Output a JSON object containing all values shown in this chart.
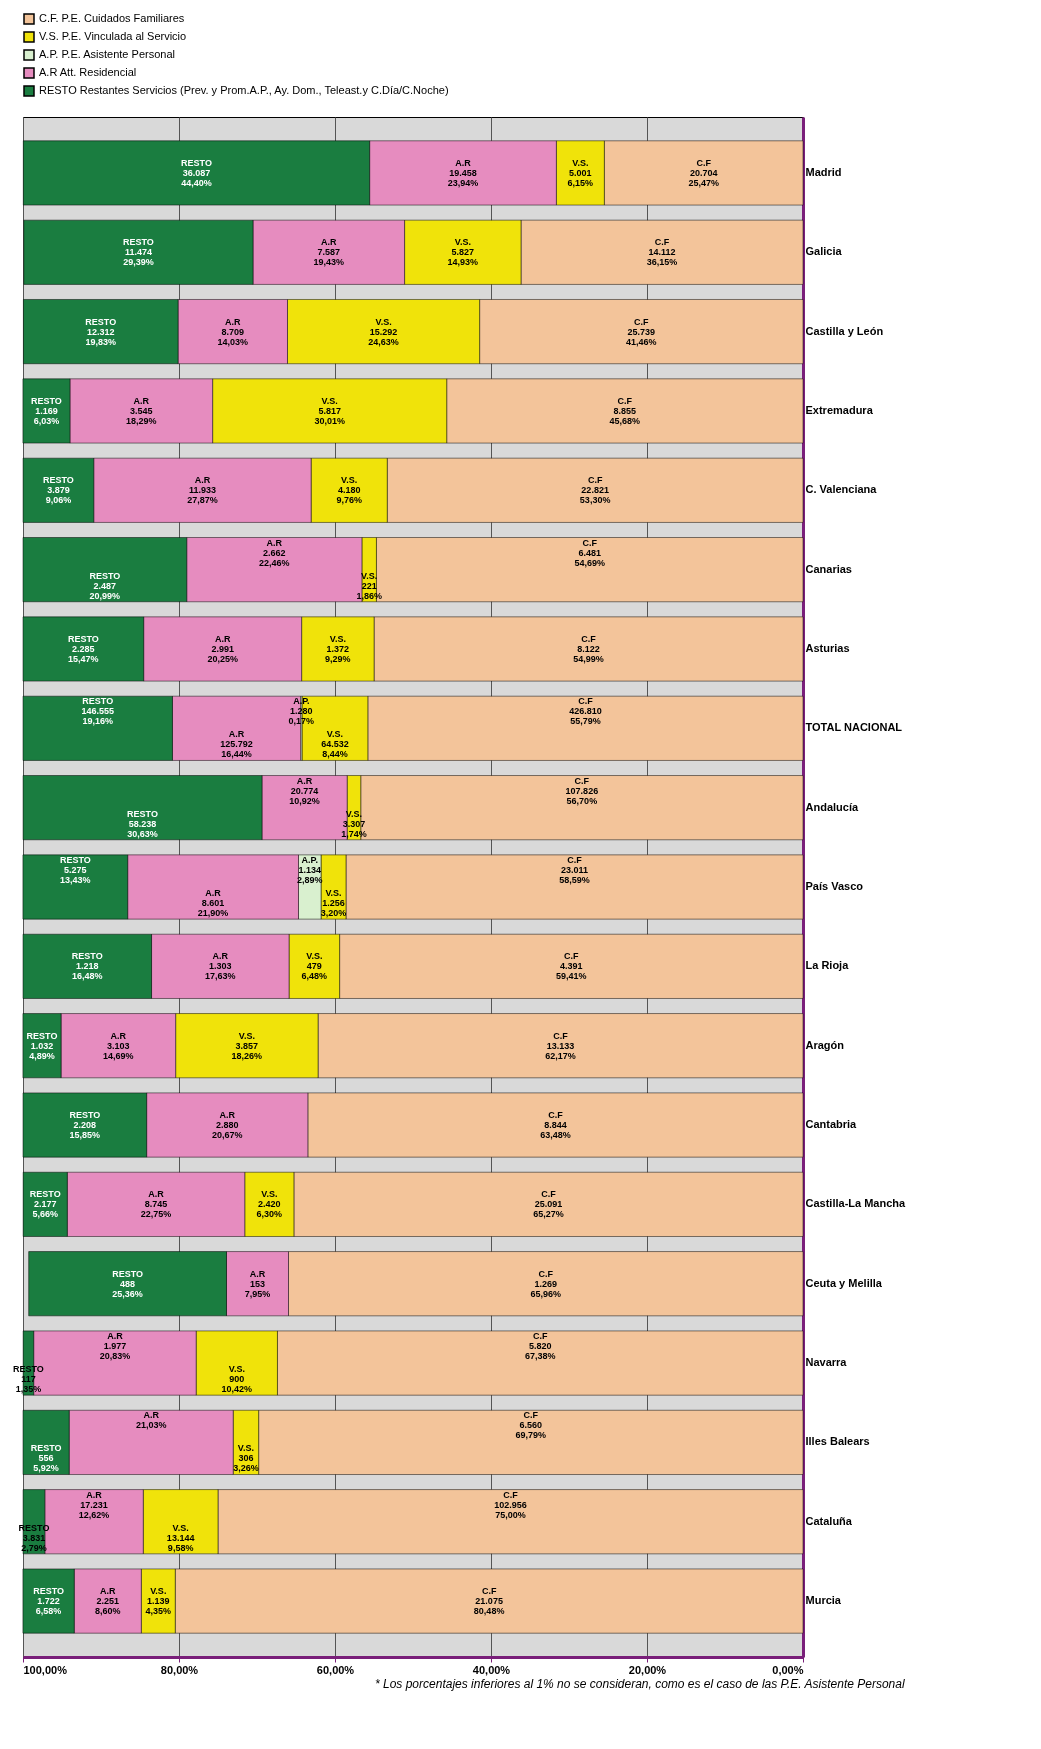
{
  "chart_data": {
    "type": "bar",
    "stacked": true,
    "orientation": "horizontal",
    "categories": [
      "Madrid",
      "Galicia",
      "Castilla y León",
      "Extremadura",
      "C. Valenciana",
      "Canarias",
      "Asturias",
      "TOTAL NACIONAL",
      "Andalucía",
      "País Vasco",
      "La Rioja",
      "Aragón",
      "Cantabria",
      "Castilla-La Mancha",
      "Ceuta y Melilla",
      "Navarra",
      "Illes Balears",
      "Cataluña",
      "Murcia"
    ],
    "series": [
      {
        "name": "C.F. P.E. Cuidados Familiares",
        "color": "#f3c49a",
        "values": [
          25.47,
          36.15,
          41.46,
          45.68,
          53.3,
          54.69,
          54.99,
          55.79,
          56.7,
          58.59,
          59.41,
          62.17,
          63.48,
          65.27,
          65.96,
          67.38,
          69.79,
          75.0,
          80.48
        ],
        "value_labels": [
          "C.F\n20.704\n25,47%",
          "C.F\n14.112\n36,15%",
          "C.F\n25.739\n41,46%",
          "C.F\n8.855\n45,68%",
          "C.F\n22.821\n53,30%",
          "C.F\n6.481\n54,69%",
          "C.F\n8.122\n54,99%",
          "C.F\n426.810\n55,79%",
          "C.F\n107.826\n56,70%",
          "C.F\n23.011\n58,59%",
          "C.F\n4.391\n59,41%",
          "C.F\n13.133\n62,17%",
          "C.F\n8.844\n63,48%",
          "C.F\n25.091\n65,27%",
          "C.F\n1.269\n65,96%",
          "C.F\n5.820\n67,38%",
          "C.F\n6.560\n69,79%",
          "C.F\n102.956\n75,00%",
          "C.F\n21.075\n80,48%"
        ]
      },
      {
        "name": "V.S. P.E. Vinculada al Servicio",
        "color": "#f0e30a",
        "values": [
          6.15,
          14.93,
          24.63,
          30.01,
          9.76,
          1.86,
          9.29,
          8.44,
          1.74,
          3.2,
          6.48,
          18.26,
          null,
          6.3,
          null,
          10.42,
          3.26,
          9.58,
          4.35
        ],
        "value_labels": [
          "V.S.\n5.001\n6,15%",
          "V.S.\n5.827\n14,93%",
          "V.S.\n15.292\n24,63%",
          "V.S.\n5.817\n30,01%",
          "V.S.\n4.180\n9,76%",
          "V.S.\n221\n1,86%",
          "V.S.\n1.372\n9,29%",
          "V.S.\n64.532\n8,44%",
          "V.S.\n3.307\n1,74%",
          "V.S.\n1.256\n3,20%",
          "V.S.\n479\n6,48%",
          "V.S.\n3.857\n18,26%",
          null,
          "V.S.\n2.420\n6,30%",
          null,
          "V.S.\n900\n10,42%",
          "V.S.\n306\n3,26%",
          "V.S.\n13.144\n9,58%",
          "V.S.\n1.139\n4,35%"
        ]
      },
      {
        "name": "A.P. P.E. Asistente Personal",
        "color": "#d9f0cf",
        "values": [
          null,
          null,
          null,
          null,
          null,
          null,
          null,
          0.17,
          null,
          2.89,
          null,
          null,
          null,
          null,
          null,
          null,
          null,
          null,
          null
        ],
        "value_labels": [
          null,
          null,
          null,
          null,
          null,
          null,
          null,
          "A.P.\n1.280\n0,17%",
          null,
          "A.P.\n1.134\n2,89%",
          null,
          null,
          null,
          null,
          null,
          null,
          null,
          null,
          null
        ]
      },
      {
        "name": "A.R Att. Residencial",
        "color": "#e68cbf",
        "values": [
          23.94,
          19.43,
          14.03,
          18.29,
          27.87,
          22.46,
          20.25,
          16.44,
          10.92,
          21.9,
          17.63,
          14.69,
          20.67,
          22.75,
          7.95,
          20.83,
          21.03,
          12.62,
          8.6
        ],
        "value_labels": [
          "A.R\n19.458\n23,94%",
          "A.R\n7.587\n19,43%",
          "A.R\n8.709\n14,03%",
          "A.R\n3.545\n18,29%",
          "A.R\n11.933\n27,87%",
          "A.R\n2.662\n22,46%",
          "A.R\n2.991\n20,25%",
          "A.R\n125.792\n16,44%",
          "A.R\n20.774\n10,92%",
          "A.R\n8.601\n21,90%",
          "A.R\n1.303\n17,63%",
          "A.R\n3.103\n14,69%",
          "A.R\n2.880\n20,67%",
          "A.R\n8.745\n22,75%",
          "A.R\n153\n7,95%",
          "A.R\n1.977\n20,83%",
          "A.R\n21,03%",
          "A.R\n17.231\n12,62%",
          "A.R\n2.251\n8,60%"
        ]
      },
      {
        "name": "RESTO Restantes Servicios (Prev. y Prom.A.P., Ay. Dom., Teleast.y C.Día/C.Noche)",
        "color": "#1a7d40",
        "values": [
          44.4,
          29.39,
          19.83,
          6.03,
          9.06,
          20.99,
          15.47,
          19.16,
          30.63,
          13.43,
          16.48,
          4.89,
          15.85,
          5.66,
          25.36,
          1.35,
          5.92,
          2.79,
          6.58
        ],
        "value_labels": [
          "RESTO\n36.087\n44,40%",
          "RESTO\n11.474\n29,39%",
          "RESTO\n12.312\n19,83%",
          "RESTO\n1.169\n6,03%",
          "RESTO\n3.879\n9,06%",
          "RESTO\n2.487\n20,99%",
          "RESTO\n2.285\n15,47%",
          "RESTO\n146.555\n19,16%",
          "RESTO\n58.238\n30,63%",
          "RESTO\n5.275\n13,43%",
          "RESTO\n1.218\n16,48%",
          "RESTO\n1.032\n4,89%",
          "RESTO\n2.208\n15,85%",
          "RESTO\n2.177\n5,66%",
          "RESTO\n488\n25,36%",
          "RESTO\n117\n1,35%",
          "RESTO\n556\n5,92%",
          "RESTO\n3.831\n2,79%",
          "RESTO\n1.722\n6,58%"
        ]
      }
    ],
    "xlim": [
      100,
      0
    ],
    "xticks": [
      {
        "value": 0,
        "label": "0,00%"
      },
      {
        "value": 20,
        "label": "20,00%"
      },
      {
        "value": 40,
        "label": "40,00%"
      },
      {
        "value": 60,
        "label": "60,00%"
      },
      {
        "value": 80,
        "label": "80,00%"
      },
      {
        "value": 100,
        "label": "100,00%"
      }
    ],
    "grid": "x",
    "legend": "top",
    "annotations": [
      "* Los porcentajes inferiores al 1% no se consideran, como es el caso de las P.E. Asistente Personal"
    ]
  }
}
